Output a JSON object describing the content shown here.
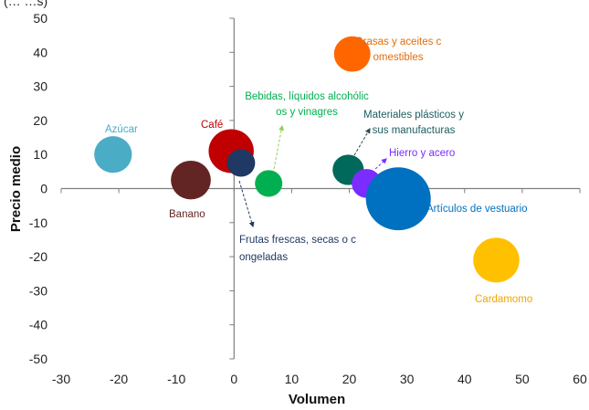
{
  "header_fragment": "(…        …s)",
  "chart_data": {
    "type": "scatter",
    "xlabel": "Volumen",
    "ylabel": "Precio medio",
    "xlim": [
      -30,
      60
    ],
    "ylim": [
      -50,
      50
    ],
    "x_ticks": [
      -30,
      -20,
      -10,
      0,
      10,
      20,
      30,
      40,
      50,
      60
    ],
    "y_ticks": [
      50,
      40,
      30,
      20,
      10,
      0,
      -10,
      -20,
      -30,
      -40,
      -50
    ],
    "grid": false,
    "points": [
      {
        "label": "Azúcar",
        "x": -21,
        "y": 10,
        "size": 3.2,
        "color": "#4bacc6",
        "label_color": "#4bacc6"
      },
      {
        "label": "Banano",
        "x": -7.5,
        "y": 2.5,
        "size": 3.6,
        "color": "#632523",
        "label_color": "#632523"
      },
      {
        "label": "Café",
        "x": -0.5,
        "y": 11,
        "size": 4.6,
        "color": "#c00000",
        "label_color": "#c00000"
      },
      {
        "label": "Frutas frescas, secas o congeladas",
        "x": 1.2,
        "y": 7.5,
        "size": 1.8,
        "color": "#1f3864",
        "label_color": "#1f3864"
      },
      {
        "label": "Bebidas, líquidos alcohólicos y vinagres",
        "x": 6,
        "y": 1.5,
        "size": 1.7,
        "color": "#00b050",
        "label_color": "#00b050"
      },
      {
        "label": "Grasas y aceites comestibles",
        "x": 20.5,
        "y": 39.5,
        "size": 3.0,
        "color": "#ff6600",
        "label_color": "#e36c09"
      },
      {
        "label": "Materiales plásticos y sus manufacturas",
        "x": 19.8,
        "y": 5.5,
        "size": 2.2,
        "color": "#00695c",
        "label_color": "#1d5e5e"
      },
      {
        "label": "Hierro y acero",
        "x": 23,
        "y": 1.5,
        "size": 2.0,
        "color": "#7b2cff",
        "label_color": "#7b2cff"
      },
      {
        "label": "Artículos de vestuario",
        "x": 28.5,
        "y": -3,
        "size": 9.5,
        "color": "#0070c0",
        "label_color": "#0070c0"
      },
      {
        "label": "Cardamomo",
        "x": 45.5,
        "y": -21,
        "size": 4.8,
        "color": "#ffc000",
        "label_color": "#f0a500"
      }
    ]
  }
}
